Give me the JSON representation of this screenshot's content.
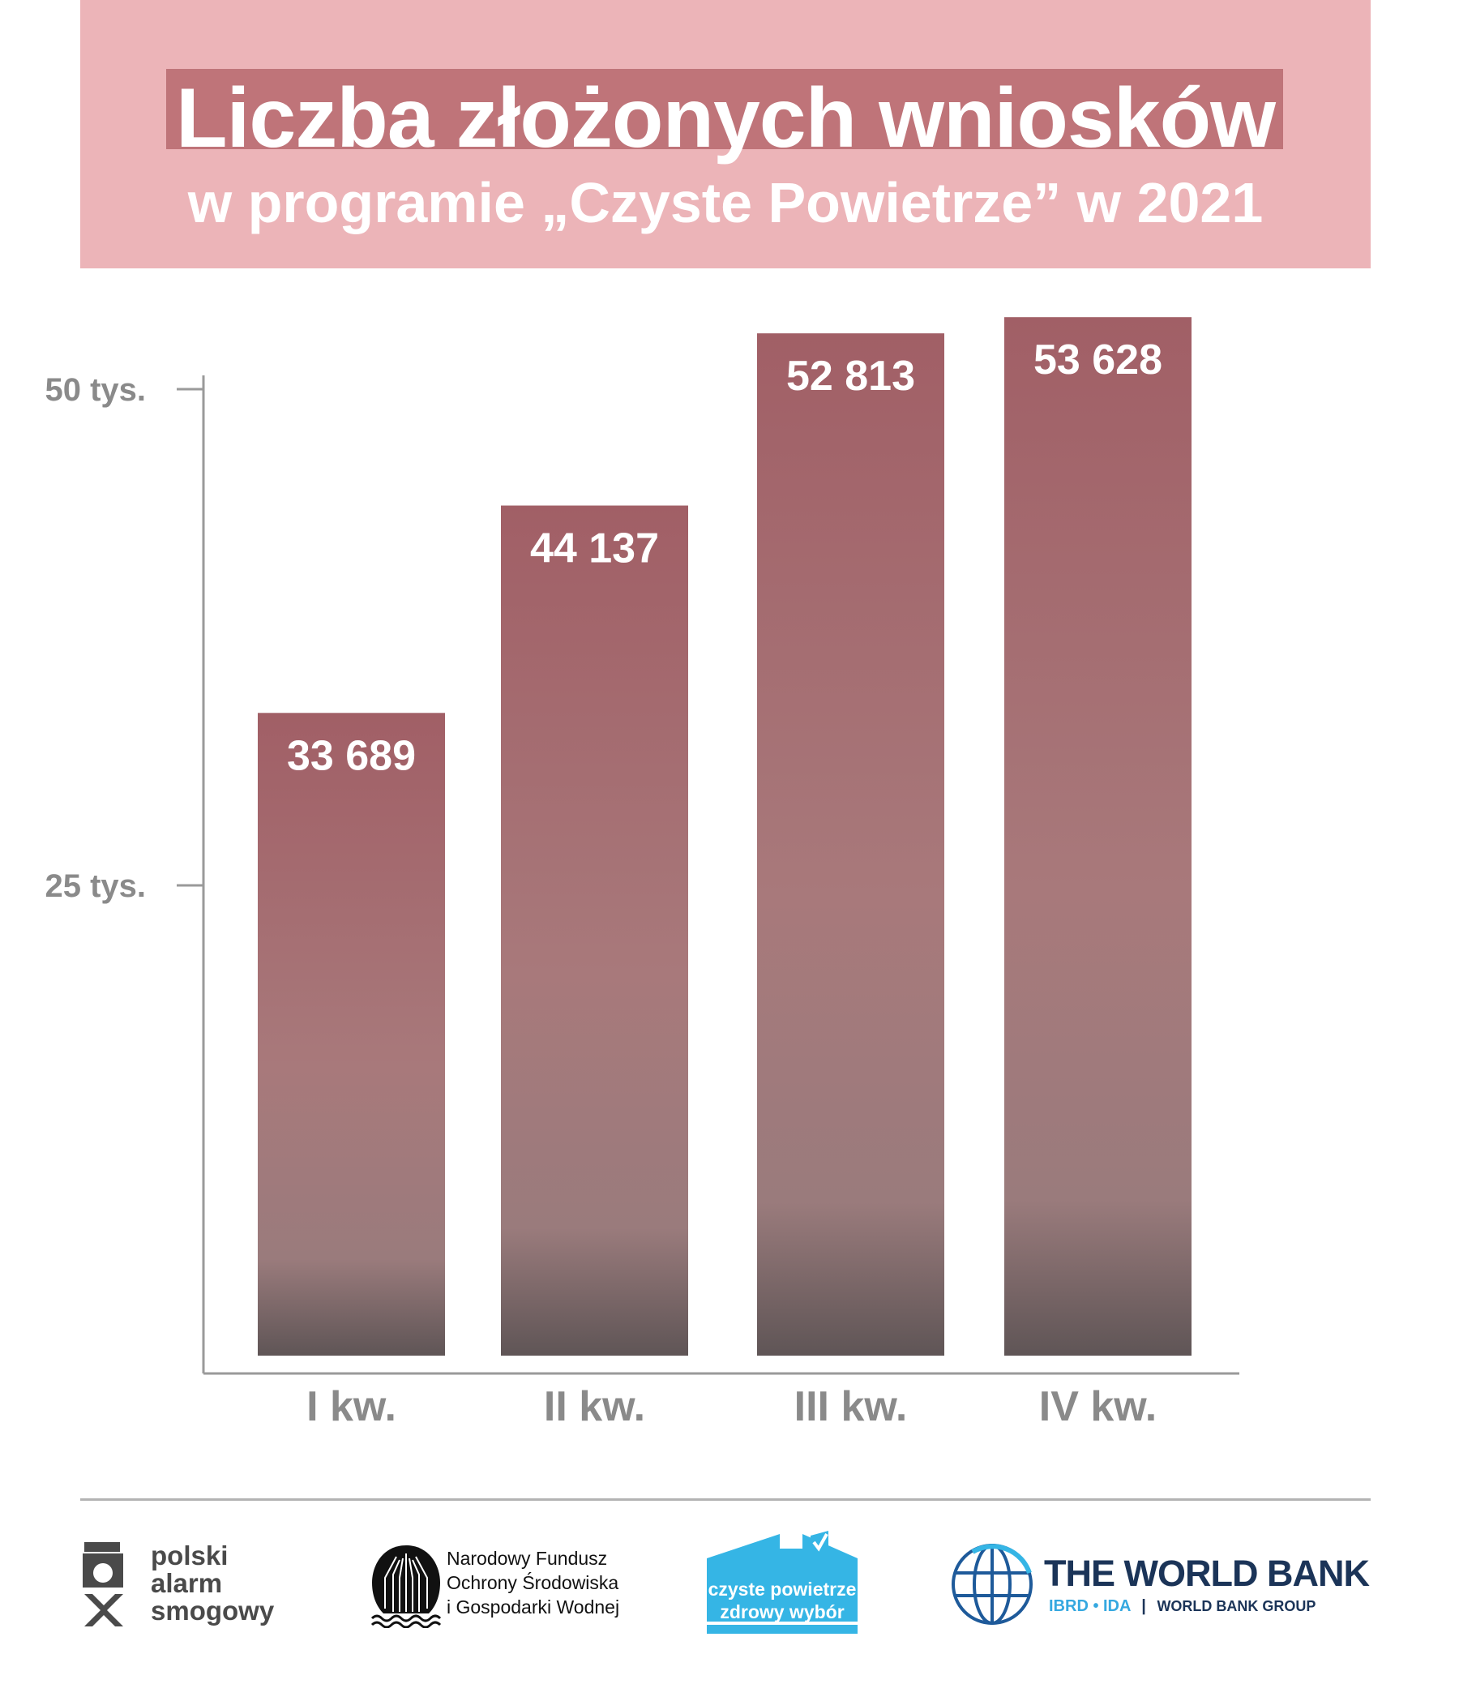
{
  "header": {
    "title": "Liczba złożonych wniosków",
    "subtitle": "w programie „Czyste Powietrze” w 2021"
  },
  "colors": {
    "header_bg": "#ecb4b8",
    "title_bar": "#bf7479",
    "bar_top": "#a15f66",
    "bar_mid": "#a8797b",
    "bar_bottom": "#5f5556",
    "axis_text": "#8a8a8a"
  },
  "chart_data": {
    "type": "bar",
    "title": "Liczba złożonych wniosków w programie „Czyste Powietrze” w 2021",
    "categories": [
      "I kw.",
      "II kw.",
      "III kw.",
      "IV kw."
    ],
    "values": [
      33689,
      44137,
      52813,
      53628
    ],
    "data_labels": [
      "33 689",
      "44 137",
      "52 813",
      "53 628"
    ],
    "yticks": [
      {
        "value": 25000,
        "label": "25 tys."
      },
      {
        "value": 50000,
        "label": "50 tys."
      }
    ],
    "xlabel": "",
    "ylabel": "",
    "ylim": [
      0,
      55000
    ],
    "grid": false,
    "legend": "none"
  },
  "footer": {
    "logos": [
      {
        "name": "polski alarm smogowy",
        "lines": [
          "polski",
          "alarm",
          "smogowy"
        ]
      },
      {
        "name": "NFOŚiGW",
        "lines": [
          "Narodowy Fundusz",
          "Ochrony Środowiska",
          "i Gospodarki Wodnej"
        ]
      },
      {
        "name": "czyste powietrze",
        "lines": [
          "czyste powietrze",
          "zdrowy wybór"
        ]
      },
      {
        "name": "The World Bank",
        "title": "THE WORLD BANK",
        "sub1": "IBRD • IDA",
        "sub2": "WORLD BANK GROUP"
      }
    ]
  }
}
